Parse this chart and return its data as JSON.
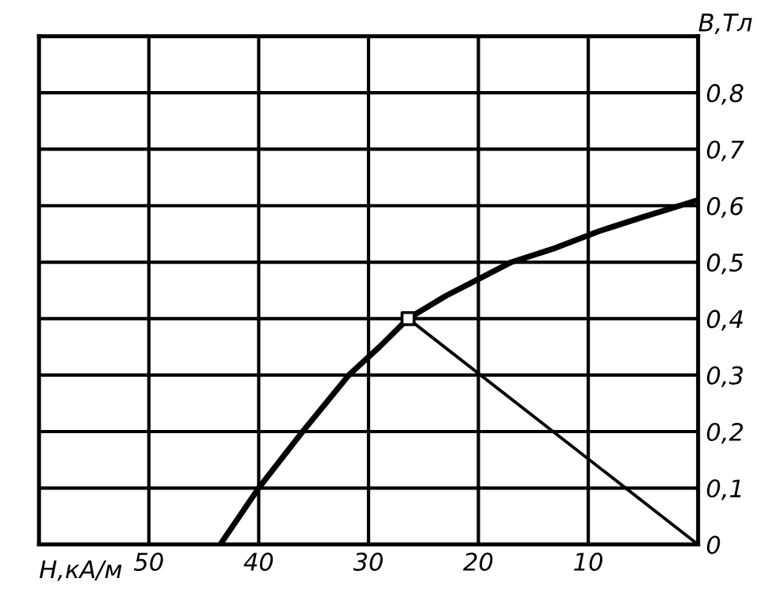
{
  "chart_data": {
    "type": "line",
    "xlabel": "H,кА/м",
    "ylabel": "B,Tл",
    "xlim": [
      60,
      0
    ],
    "ylim": [
      0,
      0.9
    ],
    "xticks": [
      50,
      40,
      30,
      20,
      10
    ],
    "yticks": [
      {
        "value": 0,
        "label": "0"
      },
      {
        "value": 0.1,
        "label": "0,1"
      },
      {
        "value": 0.2,
        "label": "0,2"
      },
      {
        "value": 0.3,
        "label": "0,3"
      },
      {
        "value": 0.4,
        "label": "0,4"
      },
      {
        "value": 0.5,
        "label": "0,5"
      },
      {
        "value": 0.6,
        "label": "0,6"
      },
      {
        "value": 0.7,
        "label": "0,7"
      },
      {
        "value": 0.8,
        "label": "0,8"
      }
    ],
    "grid": true,
    "legend": false,
    "line_style": "solid",
    "series": [
      {
        "color": "#000000",
        "x": [
          43.5,
          40,
          36,
          31.8,
          29,
          26.4,
          23,
          20,
          17,
          13,
          9,
          5,
          0
        ],
        "values": [
          0,
          0.1,
          0.2,
          0.3,
          0.35,
          0.4,
          0.44,
          0.47,
          0.5,
          0.525,
          0.555,
          0.58,
          0.61
        ]
      },
      {
        "color": "#000000",
        "x": [
          26.4,
          0
        ],
        "values": [
          0.4,
          0
        ]
      },
      {
        "type": "scatter",
        "color": "#000000",
        "marker": "square",
        "x": [
          26.4
        ],
        "values": [
          0.4
        ]
      }
    ]
  }
}
